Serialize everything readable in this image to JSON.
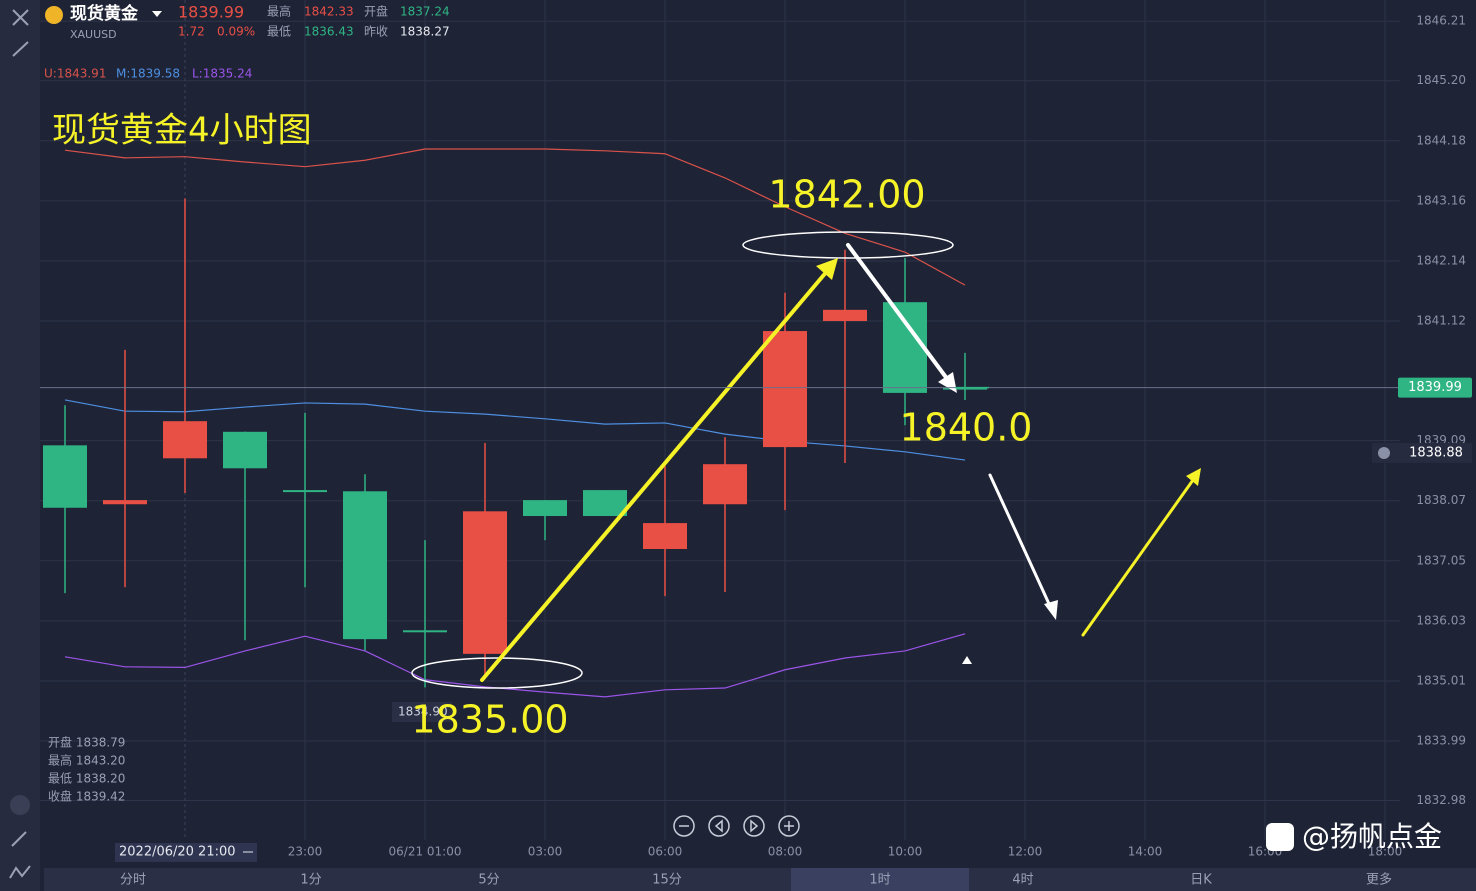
{
  "header": {
    "name": "现货黄金",
    "symbol": "XAUUSD",
    "price": "1839.99",
    "change": "1.72",
    "change_pct": "0.09%",
    "high_label": "最高",
    "high": "1842.33",
    "open_label": "开盘",
    "open": "1837.24",
    "low_label": "最低",
    "low": "1836.43",
    "prev_label": "昨收",
    "prev": "1838.27"
  },
  "chart_data": {
    "type": "candlestick",
    "title": "现货黄金4小时图",
    "categories": [
      null,
      null,
      null,
      null,
      "23:00",
      null,
      "06/21 01:00",
      null,
      "03:00",
      null,
      "06:00",
      null,
      "08:00",
      null,
      "10:00",
      null,
      "12:00",
      null,
      "14:00",
      null,
      "16:00",
      null,
      "18:00"
    ],
    "open": [
      1839.01,
      1838.01,
      1838.79,
      1839.24,
      1838.25,
      1838.23,
      1835.87,
      1835.47,
      1838.08,
      1838.25,
      1837.25,
      1838.01,
      1838.98,
      1841.12,
      1841.44,
      1839.99,
      null,
      null,
      null,
      null,
      null,
      null,
      null
    ],
    "high": [
      1839.69,
      1840.63,
      1843.2,
      1839.24,
      1839.56,
      1838.52,
      1837.4,
      1839.05,
      1838.08,
      1838.25,
      1838.66,
      1839.15,
      1841.6,
      1842.33,
      1842.19,
      1840.58,
      null,
      null,
      null,
      null,
      null,
      null,
      null
    ],
    "low": [
      1836.5,
      1836.6,
      1838.2,
      1835.7,
      1836.6,
      1835.53,
      1834.9,
      1835.11,
      1837.4,
      1837.81,
      1836.45,
      1836.52,
      1837.91,
      1838.71,
      1839.35,
      1839.78,
      null,
      null,
      null,
      null,
      null,
      null,
      null
    ],
    "close": [
      1837.95,
      1838.08,
      1839.42,
      1838.62,
      1838.22,
      1835.72,
      1835.84,
      1837.89,
      1837.81,
      1837.81,
      1837.69,
      1838.69,
      1840.95,
      1841.31,
      1839.9,
      1839.99,
      null,
      null,
      null,
      null,
      null,
      null,
      null
    ],
    "up_color": "#e84f45",
    "down_color": "#2fb484",
    "bands": [
      {
        "color": "#d9534a",
        "values": [
          1844.02,
          1843.89,
          1843.91,
          1843.82,
          1843.74,
          1843.85,
          1844.04,
          1844.04,
          1844.04,
          1844.01,
          1843.96,
          1843.55,
          1843.06,
          1842.61,
          1842.29,
          1841.73,
          null,
          null,
          null,
          null,
          null,
          null,
          null
        ]
      },
      {
        "color": "#4d8fe0",
        "values": [
          1839.78,
          1839.59,
          1839.58,
          1839.66,
          1839.73,
          1839.71,
          1839.59,
          1839.54,
          1839.46,
          1839.37,
          1839.39,
          1839.2,
          1839.08,
          1839.0,
          1838.9,
          1838.76,
          null,
          null,
          null,
          null,
          null,
          null,
          null
        ]
      },
      {
        "color": "#9a55e8",
        "values": [
          1835.42,
          1835.25,
          1835.24,
          1835.52,
          1835.77,
          1835.52,
          1835.03,
          1834.91,
          1834.82,
          1834.74,
          1834.86,
          1834.89,
          1835.2,
          1835.4,
          1835.52,
          1835.81,
          null,
          null,
          null,
          null,
          null,
          null,
          null
        ]
      }
    ],
    "band_legend": [
      "U:1843.91",
      "M:1839.58",
      "L:1835.24"
    ],
    "ylim": [
      1832.31,
      1846.57
    ],
    "yticks": [
      1846.21,
      {
        "value": 1845.2,
        "label": "1845.20"
      },
      1844.18,
      1843.16,
      1842.14,
      1841.12,
      1839.09,
      1838.07,
      1837.05,
      1836.03,
      1835.01,
      1833.99,
      1832.98
    ],
    "grid": true,
    "last_price": {
      "value": 1839.99,
      "label": "1839.99"
    },
    "alert": {
      "value": 1838.88,
      "label": "1838.88"
    },
    "low_marker": "1834.90",
    "crosshair_time": "2022/06/20 21:00",
    "crosshair_ohlc": [
      "开盘 1838.79",
      "最高 1843.20",
      "最低 1838.20",
      "收盘 1839.42"
    ],
    "annotations": [
      "1842.00",
      "1840.0",
      "1835.00"
    ]
  },
  "tabs": [
    "分时",
    "1分",
    "5分",
    "15分",
    "1时",
    "4时",
    "日K",
    "更多"
  ],
  "watermark": "@扬帆点金"
}
